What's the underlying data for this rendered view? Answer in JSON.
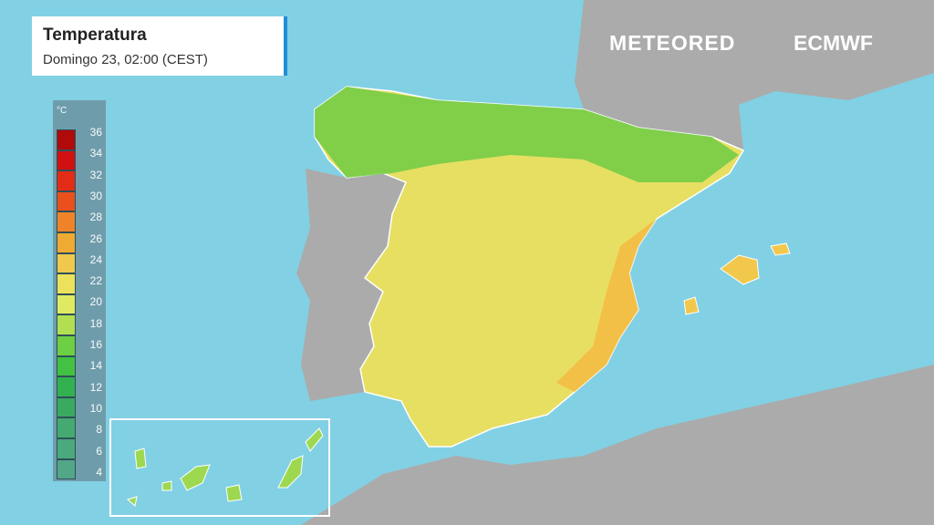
{
  "header": {
    "title": "Temperatura",
    "subtitle": "Domingo 23, 02:00 (CEST)"
  },
  "branding": {
    "provider": "METEORED",
    "model": "ECMWF"
  },
  "legend": {
    "unit": "°C",
    "items": [
      {
        "label": 36,
        "color": "#b30000"
      },
      {
        "label": 34,
        "color": "#d60606"
      },
      {
        "label": 32,
        "color": "#e8240c"
      },
      {
        "label": 30,
        "color": "#f04a12"
      },
      {
        "label": 28,
        "color": "#f57f20"
      },
      {
        "label": 26,
        "color": "#f5a82a"
      },
      {
        "label": 24,
        "color": "#f5c845"
      },
      {
        "label": 22,
        "color": "#f2e255"
      },
      {
        "label": 20,
        "color": "#e4ec5c"
      },
      {
        "label": 18,
        "color": "#b4e04a"
      },
      {
        "label": 16,
        "color": "#6ccf3c"
      },
      {
        "label": 14,
        "color": "#3fc13a"
      },
      {
        "label": 12,
        "color": "#2fb04a"
      },
      {
        "label": 10,
        "color": "#38a85a"
      },
      {
        "label": 8,
        "color": "#42a86c"
      },
      {
        "label": 6,
        "color": "#48a878"
      },
      {
        "label": 4,
        "color": "#50a585"
      }
    ]
  }
}
